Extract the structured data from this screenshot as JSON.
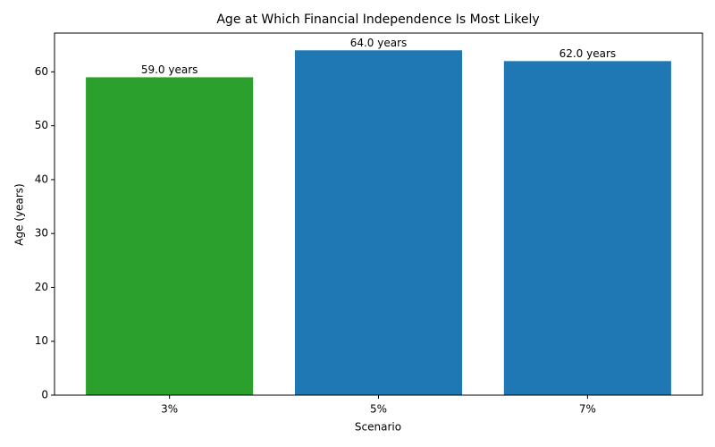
{
  "chart_data": {
    "type": "bar",
    "title": "Age at Which Financial Independence Is Most Likely",
    "categories": [
      "3%",
      "5%",
      "7%"
    ],
    "values": [
      59,
      64,
      62
    ],
    "value_labels": [
      "59.0 years",
      "64.0 years",
      "62.0 years"
    ],
    "colors": [
      "#2ca02c",
      "#1f77b4",
      "#1f77b4"
    ],
    "xlabel": "Scenario",
    "ylabel": "Age (years)",
    "ylim": [
      0,
      67.2
    ],
    "yticks": [
      0,
      10,
      20,
      30,
      40,
      50,
      60
    ],
    "grid": false
  }
}
